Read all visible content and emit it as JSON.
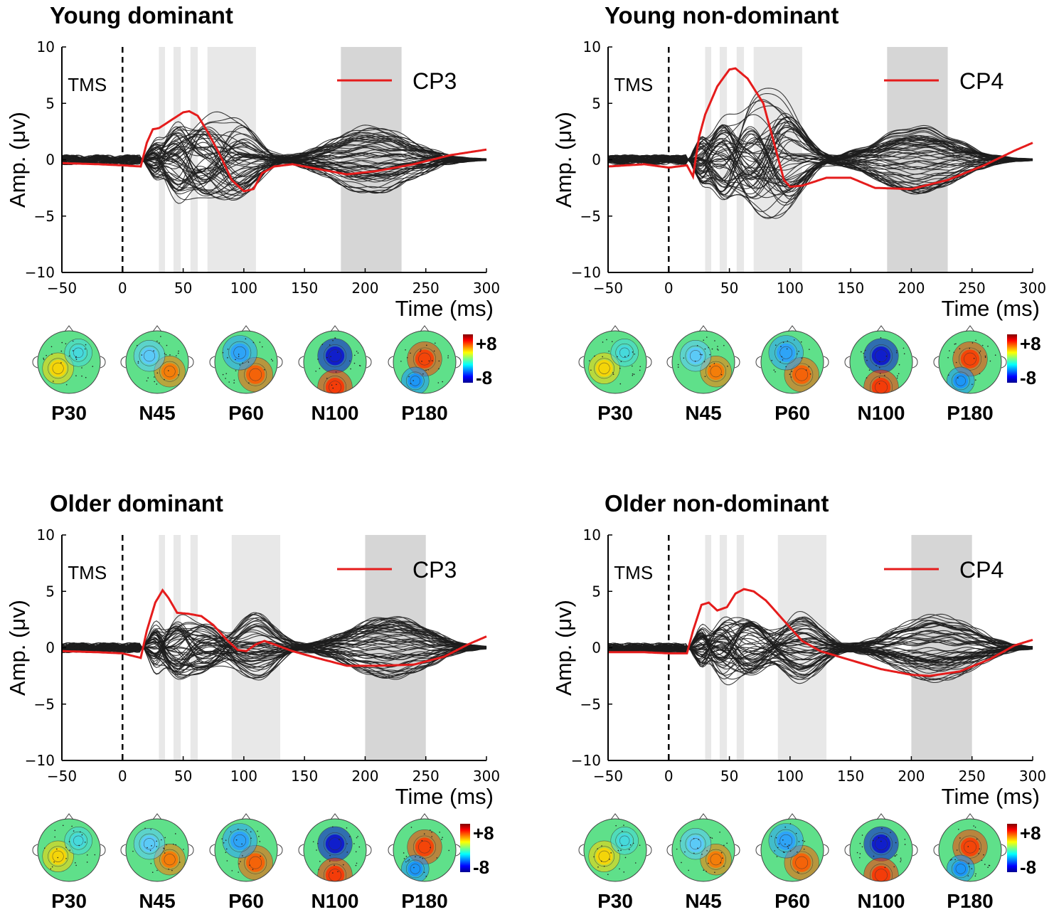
{
  "chart_data": [
    {
      "type": "line",
      "title": "Young dominant",
      "xlabel": "Time (ms)",
      "ylabel": "Amp. (μv)",
      "xlim": [
        -50,
        300
      ],
      "ylim": [
        -10,
        10
      ],
      "xticks": [
        "−50",
        "0",
        "50",
        "100",
        "150",
        "200",
        "250",
        "300"
      ],
      "yticks": [
        "10",
        "5",
        "0",
        "−5",
        "−10"
      ],
      "marker_label": "TMS",
      "highlight_series": "CP3",
      "light_bands": [
        [
          30,
          35
        ],
        [
          42,
          48
        ],
        [
          56,
          62
        ],
        [
          70,
          110
        ]
      ],
      "dark_band": [
        180,
        230
      ],
      "highlight_curve": [
        [
          -50,
          -0.3
        ],
        [
          -20,
          -0.4
        ],
        [
          0,
          -0.5
        ],
        [
          15,
          -0.6
        ],
        [
          20,
          1.5
        ],
        [
          25,
          2.7
        ],
        [
          30,
          2.8
        ],
        [
          40,
          3.5
        ],
        [
          50,
          4.2
        ],
        [
          55,
          4.3
        ],
        [
          62,
          3.9
        ],
        [
          70,
          2.5
        ],
        [
          80,
          0.5
        ],
        [
          90,
          -1.8
        ],
        [
          100,
          -2.8
        ],
        [
          108,
          -2.6
        ],
        [
          115,
          -1.2
        ],
        [
          125,
          -0.6
        ],
        [
          140,
          -0.4
        ],
        [
          160,
          -0.8
        ],
        [
          185,
          -1.3
        ],
        [
          210,
          -1.0
        ],
        [
          240,
          -0.4
        ],
        [
          270,
          0.4
        ],
        [
          300,
          0.9
        ]
      ],
      "topoplots": [
        "P30",
        "N45",
        "P60",
        "N100",
        "P180"
      ],
      "colorbar": {
        "max": "+8",
        "min": "-8"
      }
    },
    {
      "type": "line",
      "title": "Young non-dominant",
      "xlabel": "Time (ms)",
      "ylabel": "Amp. (μv)",
      "xlim": [
        -50,
        300
      ],
      "ylim": [
        -10,
        10
      ],
      "xticks": [
        "−50",
        "0",
        "50",
        "100",
        "150",
        "200",
        "250",
        "300"
      ],
      "yticks": [
        "10",
        "5",
        "0",
        "−5",
        "−10"
      ],
      "marker_label": "TMS",
      "highlight_series": "CP4",
      "light_bands": [
        [
          30,
          35
        ],
        [
          42,
          48
        ],
        [
          56,
          62
        ],
        [
          70,
          110
        ]
      ],
      "dark_band": [
        180,
        230
      ],
      "highlight_curve": [
        [
          -50,
          -0.6
        ],
        [
          -20,
          -0.4
        ],
        [
          0,
          -0.7
        ],
        [
          15,
          -0.5
        ],
        [
          20,
          -1.5
        ],
        [
          25,
          2.0
        ],
        [
          30,
          4.0
        ],
        [
          40,
          6.5
        ],
        [
          50,
          8.0
        ],
        [
          55,
          8.1
        ],
        [
          65,
          7.2
        ],
        [
          78,
          5.0
        ],
        [
          88,
          1.0
        ],
        [
          95,
          -1.8
        ],
        [
          100,
          -2.4
        ],
        [
          110,
          -2.3
        ],
        [
          130,
          -1.6
        ],
        [
          150,
          -1.6
        ],
        [
          170,
          -2.5
        ],
        [
          200,
          -2.6
        ],
        [
          230,
          -1.8
        ],
        [
          260,
          -0.5
        ],
        [
          285,
          0.8
        ],
        [
          300,
          1.5
        ]
      ],
      "topoplots": [
        "P30",
        "N45",
        "P60",
        "N100",
        "P180"
      ],
      "colorbar": {
        "max": "+8",
        "min": "-8"
      }
    },
    {
      "type": "line",
      "title": "Older dominant",
      "xlabel": "Time (ms)",
      "ylabel": "Amp. (μv)",
      "xlim": [
        -50,
        300
      ],
      "ylim": [
        -10,
        10
      ],
      "xticks": [
        "−50",
        "0",
        "50",
        "100",
        "150",
        "200",
        "250",
        "300"
      ],
      "yticks": [
        "10",
        "5",
        "0",
        "−5",
        "−10"
      ],
      "marker_label": "TMS",
      "highlight_series": "CP3",
      "light_bands": [
        [
          30,
          35
        ],
        [
          42,
          48
        ],
        [
          56,
          62
        ],
        [
          90,
          130
        ]
      ],
      "dark_band": [
        200,
        250
      ],
      "highlight_curve": [
        [
          -50,
          -0.3
        ],
        [
          -20,
          -0.4
        ],
        [
          0,
          -0.5
        ],
        [
          15,
          -0.9
        ],
        [
          20,
          1.5
        ],
        [
          27,
          4.0
        ],
        [
          33,
          5.1
        ],
        [
          38,
          4.4
        ],
        [
          45,
          3.1
        ],
        [
          55,
          3.0
        ],
        [
          65,
          2.8
        ],
        [
          75,
          2.0
        ],
        [
          85,
          0.8
        ],
        [
          95,
          -0.2
        ],
        [
          102,
          -0.3
        ],
        [
          110,
          0.3
        ],
        [
          117,
          0.6
        ],
        [
          125,
          0.3
        ],
        [
          140,
          -0.3
        ],
        [
          160,
          -0.9
        ],
        [
          185,
          -1.6
        ],
        [
          210,
          -1.6
        ],
        [
          240,
          -1.5
        ],
        [
          265,
          -0.8
        ],
        [
          285,
          0.3
        ],
        [
          300,
          1.0
        ]
      ],
      "topoplots": [
        "P30",
        "N45",
        "P60",
        "N100",
        "P180"
      ],
      "colorbar": {
        "max": "+8",
        "min": "-8"
      }
    },
    {
      "type": "line",
      "title": "Older non-dominant",
      "xlabel": "Time (ms)",
      "ylabel": "Amp. (μv)",
      "xlim": [
        -50,
        300
      ],
      "ylim": [
        -10,
        10
      ],
      "xticks": [
        "−50",
        "0",
        "50",
        "100",
        "150",
        "200",
        "250",
        "300"
      ],
      "yticks": [
        "10",
        "5",
        "0",
        "−5",
        "−10"
      ],
      "marker_label": "TMS",
      "highlight_series": "CP4",
      "light_bands": [
        [
          30,
          35
        ],
        [
          42,
          48
        ],
        [
          56,
          62
        ],
        [
          90,
          130
        ]
      ],
      "dark_band": [
        200,
        250
      ],
      "highlight_curve": [
        [
          -50,
          -0.4
        ],
        [
          -20,
          -0.4
        ],
        [
          0,
          -0.5
        ],
        [
          15,
          -0.5
        ],
        [
          20,
          1.5
        ],
        [
          27,
          3.8
        ],
        [
          33,
          4.0
        ],
        [
          40,
          3.3
        ],
        [
          48,
          3.6
        ],
        [
          55,
          4.8
        ],
        [
          62,
          5.2
        ],
        [
          70,
          5.0
        ],
        [
          80,
          4.2
        ],
        [
          90,
          3.0
        ],
        [
          100,
          1.8
        ],
        [
          110,
          0.6
        ],
        [
          125,
          -0.3
        ],
        [
          150,
          -1.1
        ],
        [
          175,
          -1.9
        ],
        [
          200,
          -2.4
        ],
        [
          215,
          -2.5
        ],
        [
          240,
          -2.1
        ],
        [
          265,
          -1.0
        ],
        [
          285,
          0.2
        ],
        [
          300,
          0.7
        ]
      ],
      "topoplots": [
        "P30",
        "N45",
        "P60",
        "N100",
        "P180"
      ],
      "colorbar": {
        "max": "+8",
        "min": "-8"
      }
    }
  ]
}
